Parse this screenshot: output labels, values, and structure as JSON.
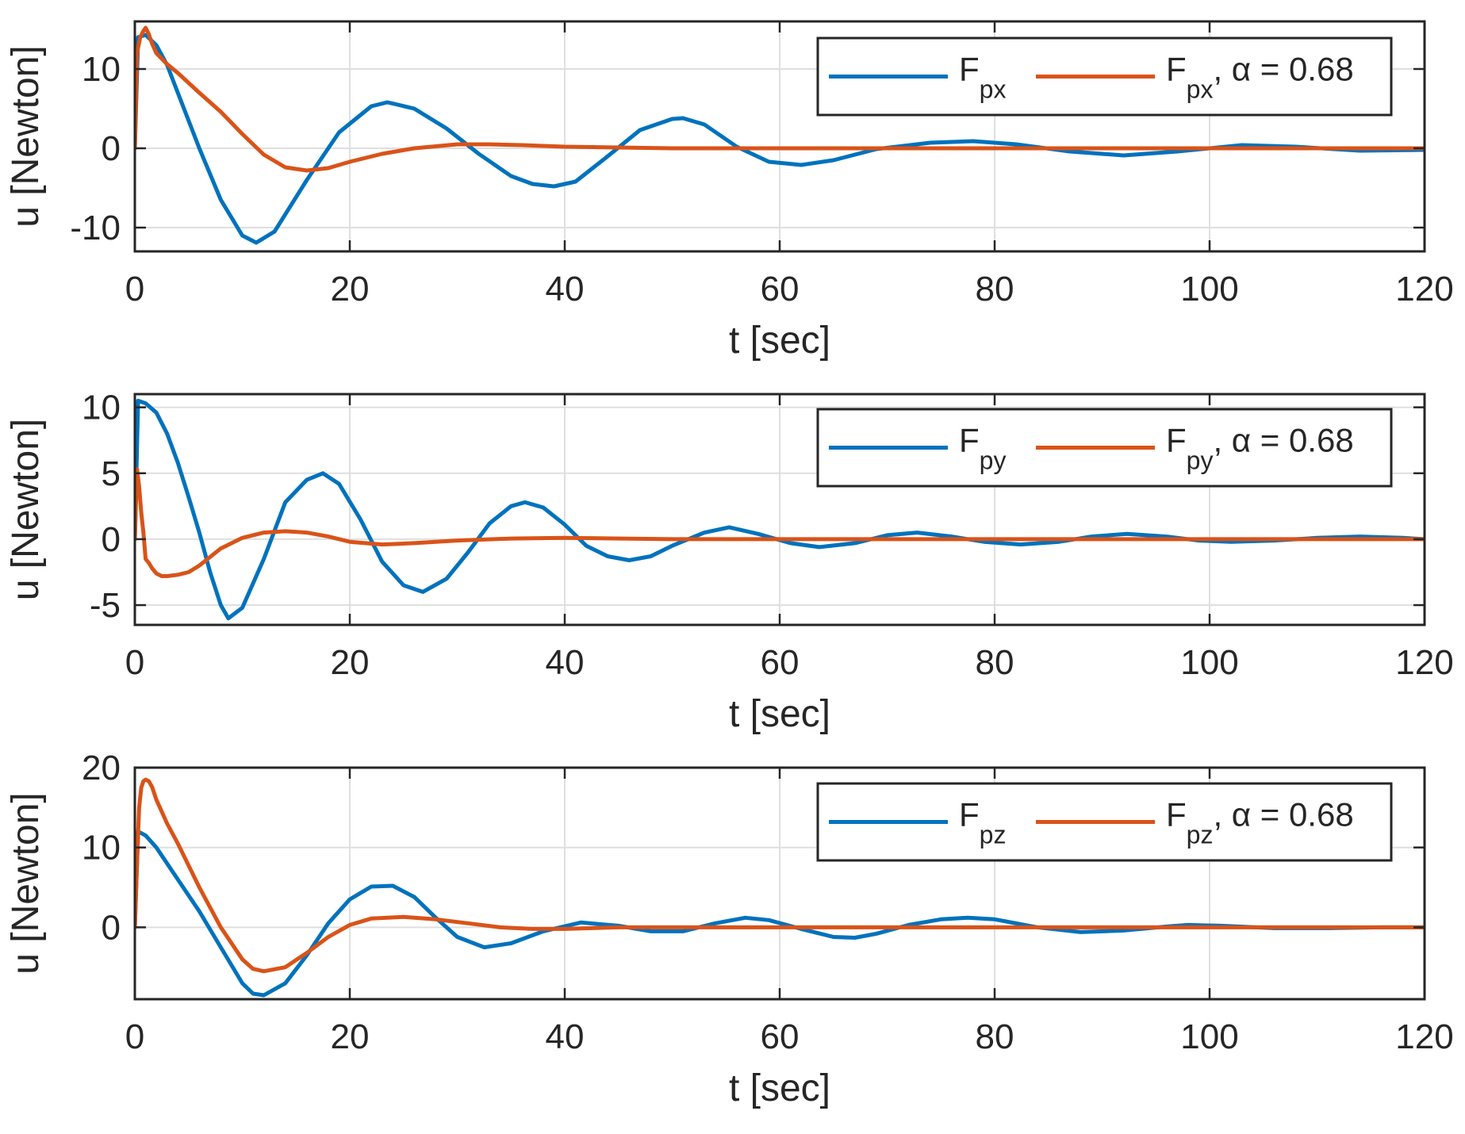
{
  "chart_data": [
    {
      "type": "line",
      "xlabel": "t [sec]",
      "ylabel": "u [Newton]",
      "xlim": [
        0,
        120
      ],
      "ylim": [
        -13,
        16
      ],
      "xticks": [
        0,
        20,
        40,
        60,
        80,
        100,
        120
      ],
      "yticks": [
        -10,
        0,
        10
      ],
      "grid": true,
      "legend_position": "top-right",
      "legend": [
        {
          "base": "F",
          "sub": "px",
          "suffix": "",
          "color": "#0072BD"
        },
        {
          "base": "F",
          "sub": "px",
          "suffix": ", α = 0.68",
          "color": "#D95319"
        }
      ],
      "series": [
        {
          "name": "Fpx",
          "color": "#0072BD",
          "x": [
            0,
            0.3,
            1,
            2,
            3,
            4,
            6,
            8,
            10,
            11.3,
            13,
            16,
            19,
            22,
            23.5,
            26,
            29,
            32,
            35,
            37,
            39,
            41,
            44,
            47,
            50,
            51,
            53,
            56,
            59,
            62,
            65,
            69,
            74,
            78,
            82,
            87,
            92,
            97,
            103,
            108,
            114,
            120
          ],
          "y": [
            0,
            14,
            14.3,
            13,
            10.5,
            7,
            0,
            -6.5,
            -11,
            -11.9,
            -10.5,
            -4,
            2,
            5.3,
            5.8,
            5,
            2.5,
            -0.7,
            -3.5,
            -4.5,
            -4.8,
            -4.2,
            -1,
            2.3,
            3.7,
            3.8,
            3,
            0.2,
            -1.7,
            -2.1,
            -1.5,
            -0.1,
            0.7,
            0.9,
            0.5,
            -0.4,
            -0.9,
            -0.4,
            0.4,
            0.2,
            -0.3,
            -0.2
          ]
        },
        {
          "name": "Fpx, α = 0.68",
          "color": "#D95319",
          "x": [
            0,
            0.2,
            0.5,
            0.8,
            1.0,
            1.3,
            1.6,
            2,
            3,
            4,
            6,
            8,
            10,
            12,
            14,
            16,
            18,
            20,
            23,
            26,
            30,
            33,
            36,
            40,
            50,
            60,
            80,
            100,
            120
          ],
          "y": [
            0,
            12,
            14,
            14.8,
            15.2,
            14.4,
            13.2,
            12,
            10.6,
            9.5,
            7,
            4.6,
            1.8,
            -0.8,
            -2.4,
            -2.8,
            -2.5,
            -1.7,
            -0.7,
            0,
            0.5,
            0.5,
            0.4,
            0.2,
            0,
            0,
            0,
            0,
            0
          ]
        }
      ]
    },
    {
      "type": "line",
      "xlabel": "t [sec]",
      "ylabel": "u [Newton]",
      "xlim": [
        0,
        120
      ],
      "ylim": [
        -6.5,
        11
      ],
      "xticks": [
        0,
        20,
        40,
        60,
        80,
        100,
        120
      ],
      "yticks": [
        -5,
        0,
        5,
        10
      ],
      "grid": true,
      "legend_position": "top-right",
      "legend": [
        {
          "base": "F",
          "sub": "py",
          "suffix": "",
          "color": "#0072BD"
        },
        {
          "base": "F",
          "sub": "py",
          "suffix": ", α = 0.68",
          "color": "#D95319"
        }
      ],
      "series": [
        {
          "name": "Fpy",
          "color": "#0072BD",
          "x": [
            0,
            0.3,
            1,
            2,
            3,
            4,
            5,
            6,
            7,
            8,
            8.7,
            10,
            12,
            14,
            16,
            17.5,
            19,
            21,
            23,
            25,
            26.8,
            29,
            31,
            33,
            35,
            36.3,
            38,
            40,
            42,
            44,
            46,
            48,
            50,
            53,
            55.3,
            58,
            61,
            63.7,
            67,
            70,
            72.8,
            76,
            79,
            82.4,
            86,
            89,
            92.3,
            96,
            99,
            102,
            106,
            110,
            114,
            118,
            120
          ],
          "y": [
            0,
            10.5,
            10.3,
            9.6,
            8,
            5.8,
            3.2,
            0.5,
            -2.5,
            -5,
            -6,
            -5.2,
            -1.5,
            2.8,
            4.5,
            5,
            4.2,
            1.5,
            -1.7,
            -3.5,
            -4,
            -3,
            -1,
            1.2,
            2.5,
            2.8,
            2.4,
            1.1,
            -0.5,
            -1.3,
            -1.6,
            -1.3,
            -0.5,
            0.5,
            0.9,
            0.4,
            -0.3,
            -0.6,
            -0.3,
            0.3,
            0.5,
            0.2,
            -0.2,
            -0.4,
            -0.2,
            0.2,
            0.4,
            0.2,
            -0.1,
            -0.2,
            -0.1,
            0.1,
            0.2,
            0.1,
            0
          ]
        },
        {
          "name": "Fpy, α = 0.68",
          "color": "#D95319",
          "x": [
            0,
            0.2,
            0.4,
            0.6,
            0.8,
            1.0,
            1.3,
            1.6,
            2,
            2.5,
            3,
            4,
            5,
            6,
            8,
            10,
            12,
            14,
            16,
            18,
            20,
            23,
            26,
            30,
            35,
            40,
            50,
            60,
            80,
            100,
            120
          ],
          "y": [
            0,
            5.3,
            4,
            2,
            0.5,
            -1.5,
            -1.8,
            -2.2,
            -2.6,
            -2.8,
            -2.8,
            -2.7,
            -2.5,
            -2,
            -0.7,
            0.1,
            0.5,
            0.6,
            0.5,
            0.2,
            -0.2,
            -0.4,
            -0.3,
            -0.1,
            0.05,
            0.1,
            0,
            0,
            0,
            0,
            0
          ]
        }
      ]
    },
    {
      "type": "line",
      "xlabel": "t [sec]",
      "ylabel": "u [Newton]",
      "xlim": [
        0,
        120
      ],
      "ylim": [
        -9,
        20
      ],
      "xticks": [
        0,
        20,
        40,
        60,
        80,
        100,
        120
      ],
      "yticks": [
        0,
        10,
        20
      ],
      "grid": true,
      "legend_position": "top-right",
      "legend": [
        {
          "base": "F",
          "sub": "pz",
          "suffix": "",
          "color": "#0072BD"
        },
        {
          "base": "F",
          "sub": "pz",
          "suffix": ", α = 0.68",
          "color": "#D95319"
        }
      ],
      "series": [
        {
          "name": "Fpz",
          "color": "#0072BD",
          "x": [
            0,
            0.3,
            1,
            2,
            4,
            6,
            8,
            10,
            11,
            12,
            14,
            16,
            18,
            20,
            22,
            24,
            26,
            28,
            30,
            32.5,
            35,
            38,
            41.5,
            45,
            48,
            51,
            54,
            56.8,
            59,
            62,
            65,
            67,
            69,
            72,
            75,
            77.5,
            80,
            84,
            88,
            92,
            96,
            98,
            101,
            106,
            111,
            116,
            120
          ],
          "y": [
            0,
            12,
            11.5,
            10,
            6,
            2,
            -2.5,
            -7,
            -8.3,
            -8.5,
            -7,
            -3.5,
            0.5,
            3.5,
            5.1,
            5.2,
            3.8,
            1.2,
            -1.2,
            -2.5,
            -2,
            -0.5,
            0.6,
            0.2,
            -0.5,
            -0.5,
            0.5,
            1.2,
            0.9,
            -0.2,
            -1.2,
            -1.3,
            -0.8,
            0.3,
            1.0,
            1.2,
            1.0,
            0,
            -0.6,
            -0.4,
            0.1,
            0.3,
            0.2,
            -0.1,
            -0.1,
            0,
            0
          ]
        },
        {
          "name": "Fpz, α = 0.68",
          "color": "#D95319",
          "x": [
            0,
            0.2,
            0.4,
            0.6,
            0.8,
            1.0,
            1.3,
            1.6,
            2,
            3,
            4,
            6,
            8,
            10,
            11,
            12,
            14,
            16,
            18,
            20,
            22,
            25,
            28,
            31,
            34,
            37,
            40,
            45,
            50,
            60,
            80,
            100,
            120
          ],
          "y": [
            0,
            8,
            15,
            17.5,
            18.3,
            18.5,
            18.3,
            17.6,
            16,
            13,
            10.5,
            5,
            0,
            -4,
            -5.2,
            -5.5,
            -5,
            -3.2,
            -1.2,
            0.3,
            1.1,
            1.3,
            1,
            0.5,
            0,
            -0.2,
            -0.2,
            0,
            0,
            0,
            0,
            0,
            0
          ]
        }
      ]
    }
  ]
}
